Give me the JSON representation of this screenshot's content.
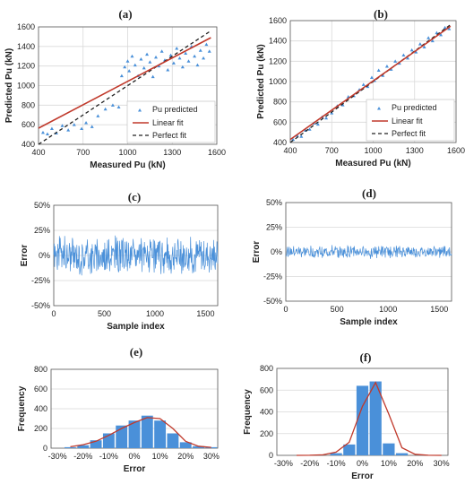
{
  "colors": {
    "points": "#4a90d9",
    "linear": "#c0392b",
    "perfect": "#222222",
    "bars": "#4a90d9",
    "curve": "#c0392b",
    "grid": "#d9d9d9"
  },
  "chart_data": [
    {
      "type": "scatter",
      "title": "(a)",
      "xlabel": "Measured Pu (kN)",
      "ylabel": "Predicted Pu (kN)",
      "xlim": [
        400,
        1600
      ],
      "ylim": [
        400,
        1600
      ],
      "xticks": [
        "400",
        "700",
        "1000",
        "1300",
        "1600"
      ],
      "yticks": [
        "400",
        "600",
        "800",
        "1000",
        "1200",
        "1400",
        "1600"
      ],
      "legend": [
        "Pu predicted",
        "Linear fit",
        "Perfect fit"
      ],
      "legend_placement": "bottom-right",
      "linear_fit": [
        [
          400,
          565
        ],
        [
          1560,
          1490
        ]
      ],
      "perfect_fit": [
        [
          400,
          400
        ],
        [
          1560,
          1560
        ]
      ],
      "points": [
        [
          430,
          520
        ],
        [
          460,
          505
        ],
        [
          490,
          560
        ],
        [
          520,
          515
        ],
        [
          560,
          590
        ],
        [
          600,
          545
        ],
        [
          640,
          600
        ],
        [
          690,
          560
        ],
        [
          720,
          620
        ],
        [
          760,
          580
        ],
        [
          800,
          690
        ],
        [
          850,
          760
        ],
        [
          900,
          800
        ],
        [
          940,
          780
        ],
        [
          960,
          1100
        ],
        [
          980,
          1190
        ],
        [
          1000,
          1250
        ],
        [
          1010,
          1150
        ],
        [
          1030,
          1300
        ],
        [
          1050,
          1210
        ],
        [
          1070,
          1100
        ],
        [
          1090,
          1270
        ],
        [
          1110,
          1180
        ],
        [
          1130,
          1320
        ],
        [
          1150,
          1240
        ],
        [
          1170,
          1090
        ],
        [
          1190,
          1290
        ],
        [
          1210,
          1200
        ],
        [
          1230,
          1350
        ],
        [
          1250,
          1260
        ],
        [
          1270,
          1160
        ],
        [
          1290,
          1310
        ],
        [
          1310,
          1230
        ],
        [
          1330,
          1380
        ],
        [
          1350,
          1280
        ],
        [
          1370,
          1190
        ],
        [
          1390,
          1330
        ],
        [
          1410,
          1250
        ],
        [
          1430,
          1400
        ],
        [
          1450,
          1300
        ],
        [
          1470,
          1210
        ],
        [
          1490,
          1360
        ],
        [
          1510,
          1280
        ],
        [
          1530,
          1420
        ],
        [
          1550,
          1350
        ]
      ]
    },
    {
      "type": "scatter",
      "title": "(b)",
      "xlabel": "Measured Pu (kN)",
      "ylabel": "Predicted Pu (kN)",
      "xlim": [
        400,
        1600
      ],
      "ylim": [
        400,
        1600
      ],
      "xticks": [
        "400",
        "700",
        "1000",
        "1300",
        "1600"
      ],
      "yticks": [
        "400",
        "600",
        "800",
        "1000",
        "1200",
        "1400",
        "1600"
      ],
      "legend": [
        "Pu predicted",
        "Linear fit",
        "Perfect fit"
      ],
      "legend_placement": "bottom-right",
      "linear_fit": [
        [
          400,
          430
        ],
        [
          1560,
          1545
        ]
      ],
      "perfect_fit": [
        [
          400,
          400
        ],
        [
          1560,
          1560
        ]
      ],
      "points": [
        [
          420,
          430
        ],
        [
          450,
          470
        ],
        [
          480,
          460
        ],
        [
          510,
          520
        ],
        [
          540,
          530
        ],
        [
          570,
          590
        ],
        [
          600,
          580
        ],
        [
          630,
          650
        ],
        [
          660,
          640
        ],
        [
          700,
          690
        ],
        [
          740,
          760
        ],
        [
          780,
          770
        ],
        [
          820,
          850
        ],
        [
          860,
          860
        ],
        [
          900,
          920
        ],
        [
          930,
          970
        ],
        [
          960,
          950
        ],
        [
          990,
          1040
        ],
        [
          1010,
          1010
        ],
        [
          1040,
          1110
        ],
        [
          1070,
          1060
        ],
        [
          1100,
          1150
        ],
        [
          1130,
          1120
        ],
        [
          1160,
          1200
        ],
        [
          1190,
          1180
        ],
        [
          1220,
          1260
        ],
        [
          1250,
          1230
        ],
        [
          1280,
          1310
        ],
        [
          1310,
          1290
        ],
        [
          1340,
          1370
        ],
        [
          1370,
          1340
        ],
        [
          1400,
          1430
        ],
        [
          1430,
          1400
        ],
        [
          1460,
          1480
        ],
        [
          1490,
          1460
        ],
        [
          1520,
          1530
        ],
        [
          1550,
          1520
        ]
      ]
    },
    {
      "type": "line",
      "title": "(c)",
      "xlabel": "Sample index",
      "ylabel": "Error",
      "xlim": [
        0,
        1620
      ],
      "ylim": [
        -0.5,
        0.5
      ],
      "xticks": [
        "0",
        "500",
        "1000",
        "1500"
      ],
      "yticks": [
        "-50%",
        "-25%",
        "0%",
        "25%",
        "50%"
      ],
      "amplitude": 0.18
    },
    {
      "type": "line",
      "title": "(d)",
      "xlabel": "Sample index",
      "ylabel": "Error",
      "xlim": [
        0,
        1620
      ],
      "ylim": [
        -0.5,
        0.5
      ],
      "xticks": [
        "0",
        "500",
        "1000",
        "1500"
      ],
      "yticks": [
        "-50%",
        "-25%",
        "0%",
        "25%",
        "50%"
      ],
      "amplitude": 0.06
    },
    {
      "type": "bar",
      "title": "(e)",
      "xlabel": "Error",
      "ylabel": "Frequency",
      "xlim": [
        -0.325,
        0.325
      ],
      "ylim": [
        0,
        800
      ],
      "xticks": [
        "-30%",
        "-20%",
        "-10%",
        "0%",
        "10%",
        "20%",
        "30%"
      ],
      "yticks": [
        "0",
        "200",
        "400",
        "600",
        "800"
      ],
      "categories": [
        -0.25,
        -0.2,
        -0.15,
        -0.1,
        -0.05,
        0,
        0.05,
        0.1,
        0.15,
        0.2,
        0.25,
        0.3
      ],
      "values": [
        10,
        30,
        80,
        150,
        230,
        280,
        330,
        280,
        150,
        60,
        20,
        10
      ],
      "curve": [
        [
          -0.25,
          15
        ],
        [
          -0.2,
          35
        ],
        [
          -0.15,
          70
        ],
        [
          -0.1,
          130
        ],
        [
          -0.05,
          200
        ],
        [
          0,
          260
        ],
        [
          0.05,
          310
        ],
        [
          0.1,
          300
        ],
        [
          0.15,
          200
        ],
        [
          0.2,
          70
        ],
        [
          0.25,
          20
        ],
        [
          0.3,
          8
        ]
      ]
    },
    {
      "type": "bar",
      "title": "(f)",
      "xlabel": "Error",
      "ylabel": "Frequency",
      "xlim": [
        -0.325,
        0.325
      ],
      "ylim": [
        0,
        800
      ],
      "xticks": [
        "-30%",
        "-20%",
        "-10%",
        "0%",
        "10%",
        "20%",
        "30%"
      ],
      "yticks": [
        "0",
        "200",
        "400",
        "600",
        "800"
      ],
      "categories": [
        -0.1,
        -0.05,
        0,
        0.05,
        0.1,
        0.15
      ],
      "values": [
        20,
        100,
        640,
        680,
        110,
        20
      ],
      "curve": [
        [
          -0.25,
          0
        ],
        [
          -0.2,
          1
        ],
        [
          -0.15,
          5
        ],
        [
          -0.1,
          30
        ],
        [
          -0.05,
          120
        ],
        [
          0,
          450
        ],
        [
          0.05,
          670
        ],
        [
          0.1,
          380
        ],
        [
          0.15,
          70
        ],
        [
          0.2,
          10
        ],
        [
          0.25,
          1
        ],
        [
          0.3,
          0
        ]
      ]
    }
  ]
}
